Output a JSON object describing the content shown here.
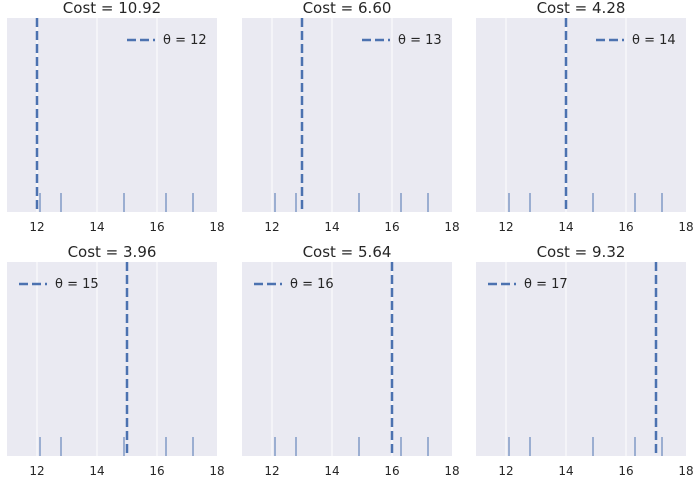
{
  "style": {
    "panel_bg": "#eaeaf2",
    "grid_color": "#ffffff",
    "line_color": "#4c72b0",
    "rug_color": "#4c72b0"
  },
  "chart_data": [
    {
      "type": "rug-with-vline",
      "title": "Cost = 10.92",
      "theta": 12,
      "legend_label": "θ = 12",
      "legend_position": "upper right",
      "points": [
        12.1,
        12.8,
        14.9,
        16.3,
        17.2
      ],
      "xlim": [
        11,
        18
      ],
      "xticks": [
        12,
        14,
        16,
        18
      ],
      "grid": true
    },
    {
      "type": "rug-with-vline",
      "title": "Cost = 6.60",
      "theta": 13,
      "legend_label": "θ = 13",
      "legend_position": "upper right",
      "points": [
        12.1,
        12.8,
        14.9,
        16.3,
        17.2
      ],
      "xlim": [
        11,
        18
      ],
      "xticks": [
        12,
        14,
        16,
        18
      ],
      "grid": true
    },
    {
      "type": "rug-with-vline",
      "title": "Cost = 4.28",
      "theta": 14,
      "legend_label": "θ = 14",
      "legend_position": "upper right",
      "points": [
        12.1,
        12.8,
        14.9,
        16.3,
        17.2
      ],
      "xlim": [
        11,
        18
      ],
      "xticks": [
        12,
        14,
        16,
        18
      ],
      "grid": true
    },
    {
      "type": "rug-with-vline",
      "title": "Cost = 3.96",
      "theta": 15,
      "legend_label": "θ = 15",
      "legend_position": "upper left",
      "points": [
        12.1,
        12.8,
        14.9,
        16.3,
        17.2
      ],
      "xlim": [
        11,
        18
      ],
      "xticks": [
        12,
        14,
        16,
        18
      ],
      "grid": true
    },
    {
      "type": "rug-with-vline",
      "title": "Cost = 5.64",
      "theta": 16,
      "legend_label": "θ = 16",
      "legend_position": "upper left",
      "points": [
        12.1,
        12.8,
        14.9,
        16.3,
        17.2
      ],
      "xlim": [
        11,
        18
      ],
      "xticks": [
        12,
        14,
        16,
        18
      ],
      "grid": true
    },
    {
      "type": "rug-with-vline",
      "title": "Cost = 9.32",
      "theta": 17,
      "legend_label": "θ = 17",
      "legend_position": "upper left",
      "points": [
        12.1,
        12.8,
        14.9,
        16.3,
        17.2
      ],
      "xlim": [
        11,
        18
      ],
      "xticks": [
        12,
        14,
        16,
        18
      ],
      "grid": true
    }
  ]
}
